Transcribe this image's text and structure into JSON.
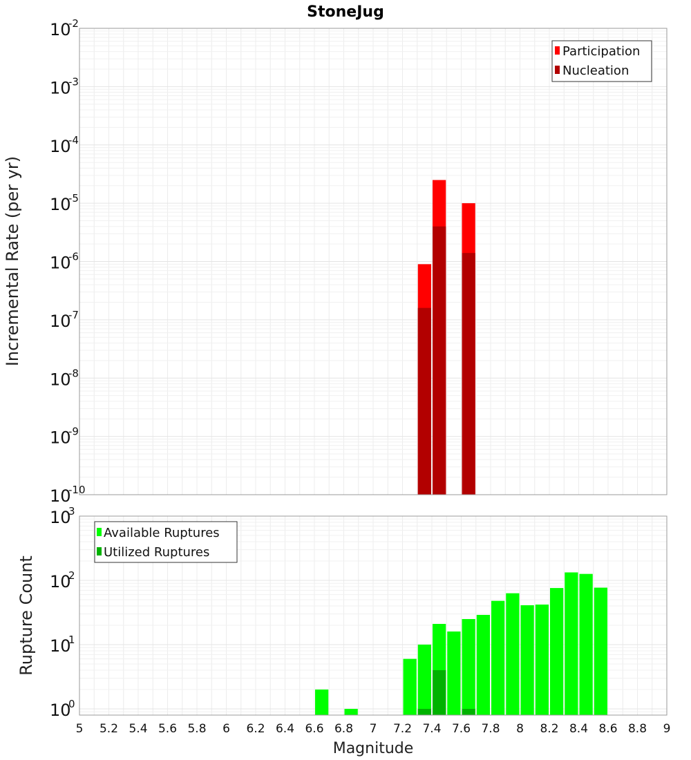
{
  "chart_data": [
    {
      "type": "bar",
      "title": "StoneJug",
      "xlabel": "Magnitude",
      "ylabel": "Incremental Rate (per yr)",
      "yscale": "log",
      "ylim": [
        1e-10,
        0.01
      ],
      "xlim": [
        5,
        9
      ],
      "bin_width": 0.1,
      "y_ticks": [
        {
          "base": "10",
          "exp": "-10"
        },
        {
          "base": "10",
          "exp": "-9"
        },
        {
          "base": "10",
          "exp": "-8"
        },
        {
          "base": "10",
          "exp": "-7"
        },
        {
          "base": "10",
          "exp": "-6"
        },
        {
          "base": "10",
          "exp": "-5"
        },
        {
          "base": "10",
          "exp": "-4"
        },
        {
          "base": "10",
          "exp": "-3"
        },
        {
          "base": "10",
          "exp": "-2"
        }
      ],
      "legend_position": "top-right",
      "series": [
        {
          "name": "Participation",
          "color": "#ff0000",
          "x": [
            7.35,
            7.45,
            7.65
          ],
          "values": [
            9e-07,
            2.5e-05,
            1e-05
          ]
        },
        {
          "name": "Nucleation",
          "color": "#b20000",
          "x": [
            7.35,
            7.45,
            7.65
          ],
          "values": [
            1.6e-07,
            4e-06,
            1.4e-06
          ]
        }
      ]
    },
    {
      "type": "bar",
      "title": "",
      "xlabel": "Magnitude",
      "ylabel": "Rupture Count",
      "yscale": "log",
      "ylim": [
        0.8,
        1000
      ],
      "xlim": [
        5,
        9
      ],
      "bin_width": 0.1,
      "x_tick_labels": [
        "5",
        "5.2",
        "5.4",
        "5.6",
        "5.8",
        "6",
        "6.2",
        "6.4",
        "6.6",
        "6.8",
        "7",
        "7.2",
        "7.4",
        "7.6",
        "7.8",
        "8",
        "8.2",
        "8.4",
        "8.6",
        "8.8",
        "9"
      ],
      "y_ticks": [
        {
          "base": "10",
          "exp": "0"
        },
        {
          "base": "10",
          "exp": "1"
        },
        {
          "base": "10",
          "exp": "2"
        },
        {
          "base": "10",
          "exp": "3"
        }
      ],
      "legend_position": "top-left",
      "series": [
        {
          "name": "Available Ruptures",
          "color": "#00ff00",
          "x": [
            6.65,
            6.85,
            7.25,
            7.35,
            7.45,
            7.55,
            7.65,
            7.75,
            7.85,
            7.95,
            8.05,
            8.15,
            8.25,
            8.35,
            8.45,
            8.55
          ],
          "values": [
            2,
            1,
            6,
            10,
            21,
            16,
            25,
            29,
            48,
            63,
            41,
            42,
            76,
            133,
            126,
            77
          ]
        },
        {
          "name": "Utilized Ruptures",
          "color": "#00b200",
          "x": [
            7.35,
            7.45,
            7.65
          ],
          "values": [
            1,
            4,
            1
          ]
        }
      ]
    }
  ]
}
